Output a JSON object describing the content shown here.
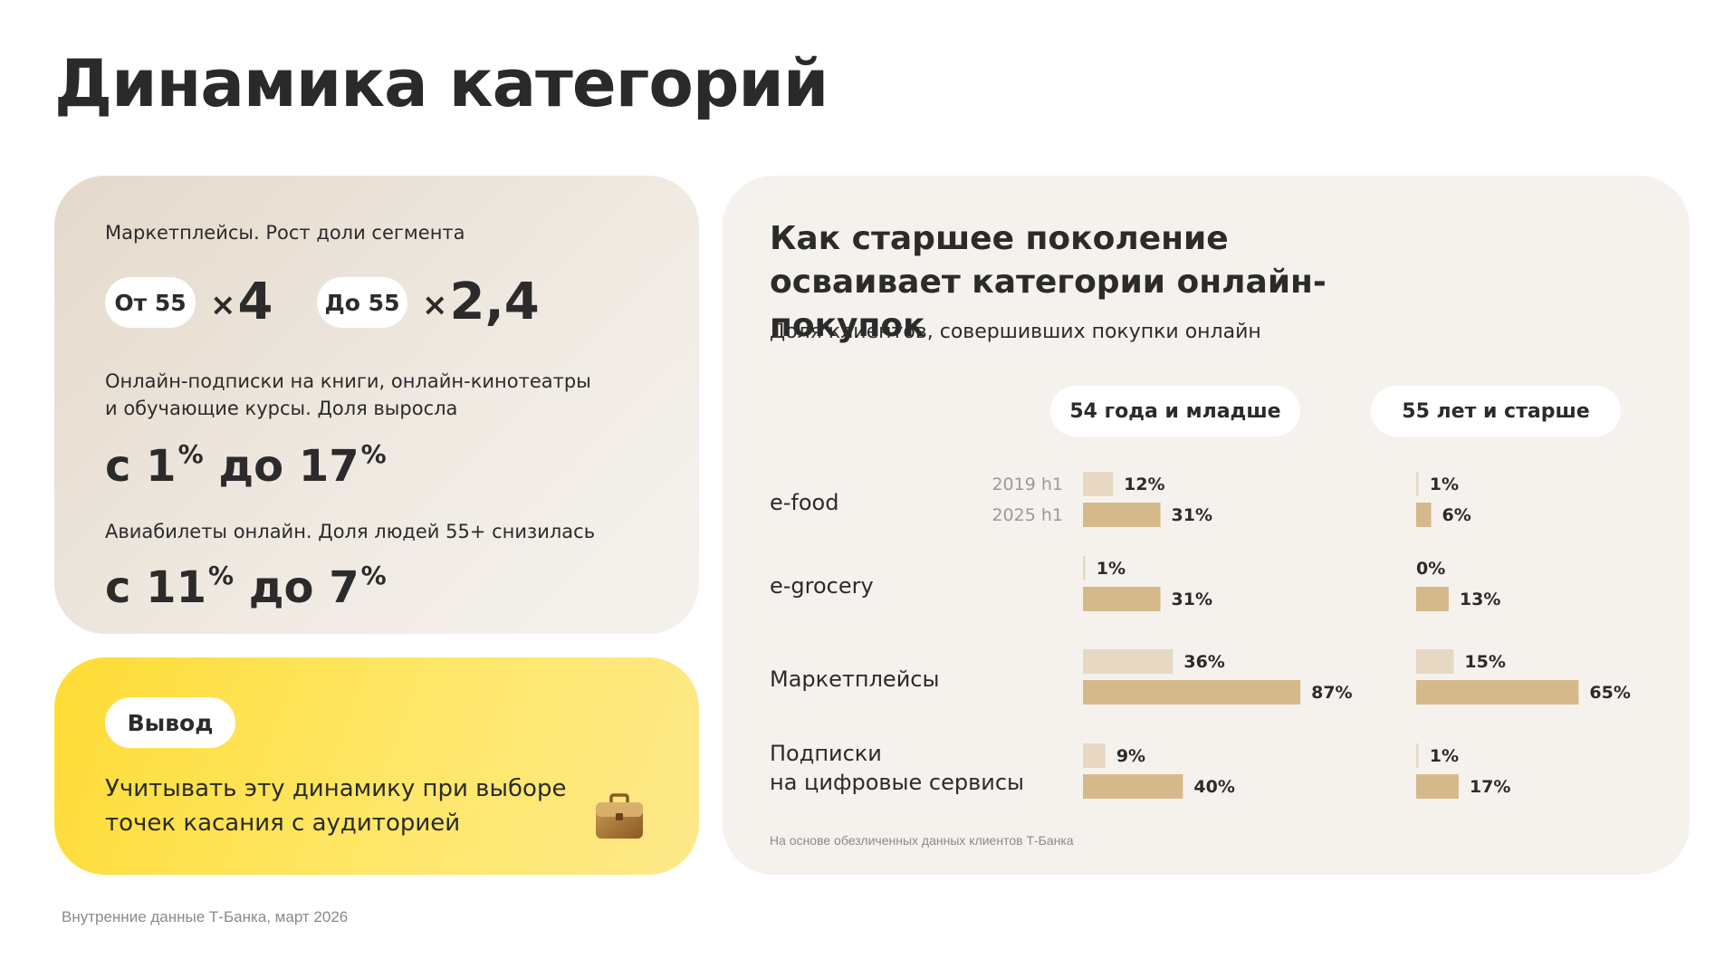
{
  "page_title": "Динамика категорий",
  "stats": {
    "marketplaces_label": "Маркетплейсы. Рост доли сегмента",
    "from55_pill": "От 55",
    "from55_value": "4",
    "to55_pill": "До 55",
    "to55_value": "2,4",
    "multiplier_sign": "×",
    "subscriptions_label_1": "Онлайн-подписки на книги, онлайн-кинотеатры",
    "subscriptions_label_2": "и обучающие курсы. Доля выросла",
    "subscriptions_range": {
      "prefix": "с",
      "from": "1",
      "middle": "до",
      "to": "17",
      "unit": "%"
    },
    "flights_label": "Авиабилеты онлайн. Доля людей 55+ снизилась",
    "flights_range": {
      "prefix": "с",
      "from": "11",
      "middle": "до",
      "to": "7",
      "unit": "%"
    }
  },
  "conclusion": {
    "pill": "Вывод",
    "text": "Учитывать эту динамику при выборе точек касания с аудиторией",
    "icon": "briefcase-icon"
  },
  "footnote": "Внутренние данные Т-Банка, март 2026",
  "colors": {
    "bar_2019": "#e6d8c3",
    "bar_2025": "#d6b98b",
    "accent_yellow": "#fedc35",
    "card_beige": "#f5f2ee"
  },
  "chart_data": {
    "type": "bar",
    "orientation": "horizontal",
    "title": "Как старшее поколение осваивает категории онлайн-покупок",
    "subtitle": "Доля клиентов, совершивших покупки онлайн",
    "groups": [
      "54 года и младше",
      "55 лет и старше"
    ],
    "categories": [
      "e-food",
      "e-grocery",
      "Маркетплейсы",
      "Подписки на цифровые сервисы"
    ],
    "category_lines": [
      [
        "e-food"
      ],
      [
        "e-grocery"
      ],
      [
        "Маркетплейсы"
      ],
      [
        "Подписки",
        "на цифровые сервисы"
      ]
    ],
    "series": [
      {
        "name": "2019 h1",
        "color": "#e6d8c3",
        "values_54_and_younger": [
          12,
          1,
          36,
          9
        ],
        "values_55_and_older": [
          1,
          0,
          15,
          1
        ]
      },
      {
        "name": "2025 h1",
        "color": "#d6b98b",
        "values_54_and_younger": [
          31,
          31,
          87,
          40
        ],
        "values_55_and_older": [
          6,
          13,
          65,
          17
        ]
      }
    ],
    "unit": "%",
    "xlim": [
      0,
      100
    ],
    "source": "На основе обезличенных данных клиентов Т-Банка"
  }
}
